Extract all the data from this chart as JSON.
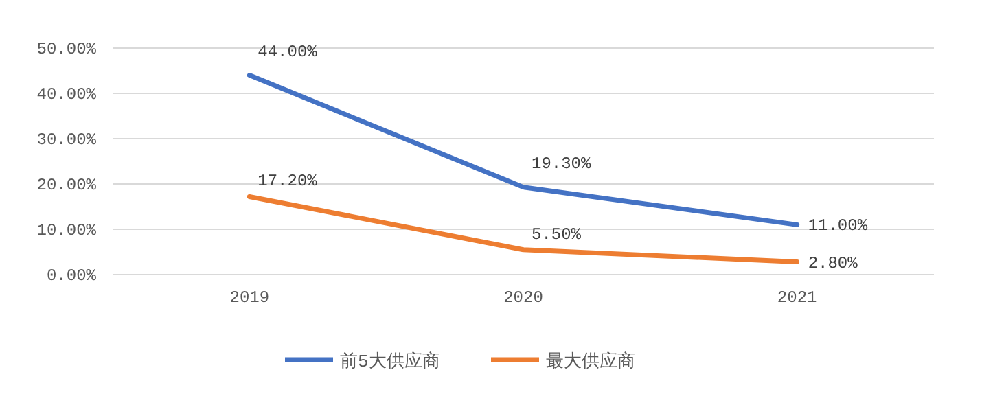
{
  "chart_data": {
    "type": "line",
    "categories": [
      "2019",
      "2020",
      "2021"
    ],
    "series": [
      {
        "name": "前5大供应商",
        "color": "#4472c4",
        "values": [
          44,
          19.3,
          11
        ],
        "value_labels": [
          "44.00%",
          "19.30%",
          "11.00%"
        ]
      },
      {
        "name": "最大供应商",
        "color": "#ed7d31",
        "values": [
          17.2,
          5.5,
          2.8
        ],
        "value_labels": [
          "17.20%",
          "5.50%",
          "2.80%"
        ]
      }
    ],
    "ylim": [
      0,
      50
    ],
    "yticks": [
      {
        "value": 0,
        "label": "0.00%"
      },
      {
        "value": 10,
        "label": "10.00%"
      },
      {
        "value": 20,
        "label": "20.00%"
      },
      {
        "value": 30,
        "label": "30.00%"
      },
      {
        "value": 40,
        "label": "40.00%"
      },
      {
        "value": 50,
        "label": "50.00%"
      }
    ],
    "grid": "y",
    "legend": "bottom",
    "marker": "none",
    "line_style": "solid"
  }
}
